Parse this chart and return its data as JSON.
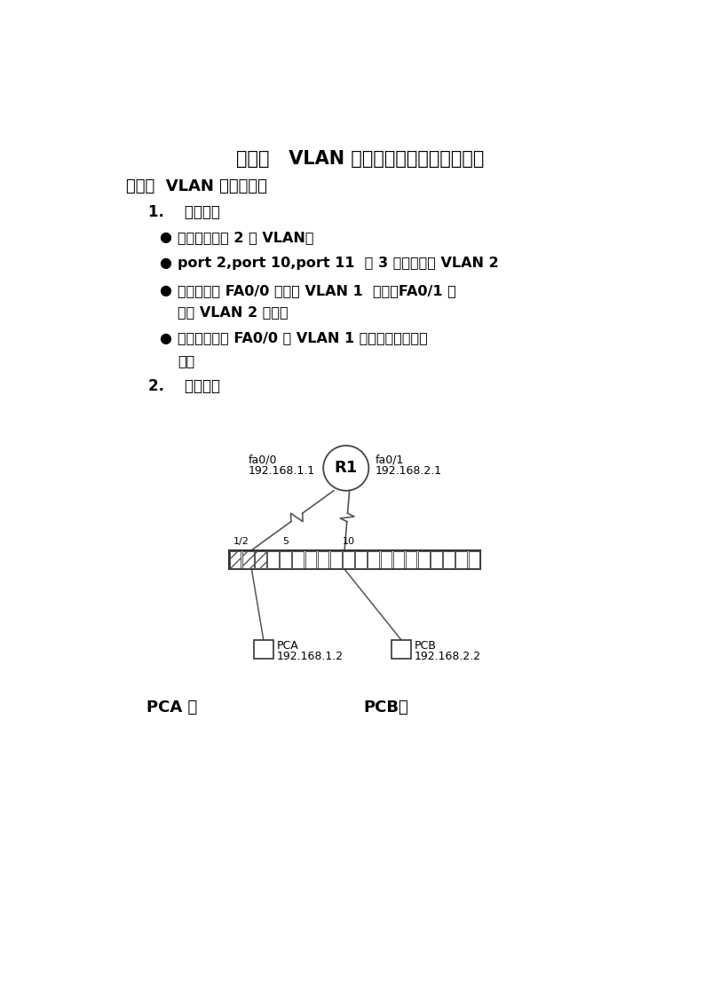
{
  "title": "实验七   VLAN 之间的路由及配置单臂路由",
  "section1": "（一）  VLAN 之间的路由",
  "subsection1": "1.    实验要求",
  "bullet1": "将交换机划成 2 个 VLAN；",
  "bullet2": "port 2,port 10,port 11  等 3 个端口加入 VLAN 2",
  "bullet3_line1": "把路由器的 FA0/0 口加入 VLAN 1  连接，FA0/1 口",
  "bullet3_line2": "加入 VLAN 2 连接。",
  "bullet4_line1": "仅使路由器的 FA0/0 与 VLAN 1 连接，配置单臂路",
  "bullet4_line2": "由。",
  "subsection2": "2.    实验拓扑",
  "router_label": "R1",
  "fa00_line1": "fa0/0",
  "fa00_line2": "192.168.1.1",
  "fa01_line1": "fa0/1",
  "fa01_line2": "192.168.2.1",
  "pca_line1": "PCA",
  "pca_line2": "192.168.1.2",
  "pcb_line1": "PCB",
  "pcb_line2": "192.168.2.2",
  "port_label1": "1/2",
  "port_label5": "5",
  "port_label10": "10",
  "pca_bottom": "PCA ：",
  "pcb_bottom": "PCB：",
  "bg_color": "#ffffff",
  "text_color": "#000000"
}
